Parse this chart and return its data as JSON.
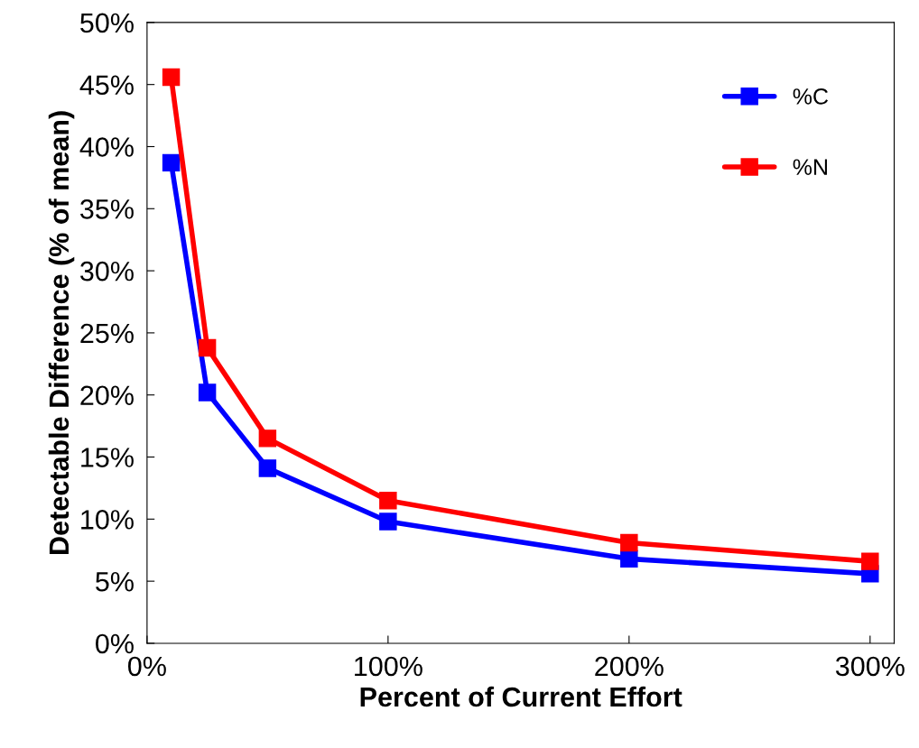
{
  "chart_data": {
    "type": "line",
    "xlabel": "Percent of Current Effort",
    "ylabel": "Detectable Difference (% of mean)",
    "x": [
      10,
      25,
      50,
      100,
      200,
      300
    ],
    "series": [
      {
        "name": "%C",
        "color": "#0000ff",
        "values": [
          38.7,
          20.2,
          14.1,
          9.8,
          6.8,
          5.6
        ]
      },
      {
        "name": "%N",
        "color": "#ff0000",
        "values": [
          45.6,
          23.8,
          16.5,
          11.5,
          8.1,
          6.6
        ]
      }
    ],
    "xlim": [
      0,
      310
    ],
    "xticks": [
      {
        "value": 0,
        "label": "0%"
      },
      {
        "value": 100,
        "label": "100%"
      },
      {
        "value": 200,
        "label": "200%"
      },
      {
        "value": 300,
        "label": "300%"
      }
    ],
    "ylim": [
      0,
      50
    ],
    "yticks": [
      {
        "value": 0,
        "label": "0%"
      },
      {
        "value": 5,
        "label": "5%"
      },
      {
        "value": 10,
        "label": "10%"
      },
      {
        "value": 15,
        "label": "15%"
      },
      {
        "value": 20,
        "label": "20%"
      },
      {
        "value": 25,
        "label": "25%"
      },
      {
        "value": 30,
        "label": "30%"
      },
      {
        "value": 35,
        "label": "35%"
      },
      {
        "value": 40,
        "label": "40%"
      },
      {
        "value": 45,
        "label": "45%"
      },
      {
        "value": 50,
        "label": "50%"
      }
    ],
    "grid": false,
    "legend": "top right",
    "marker": "square",
    "line_style": "solid"
  }
}
